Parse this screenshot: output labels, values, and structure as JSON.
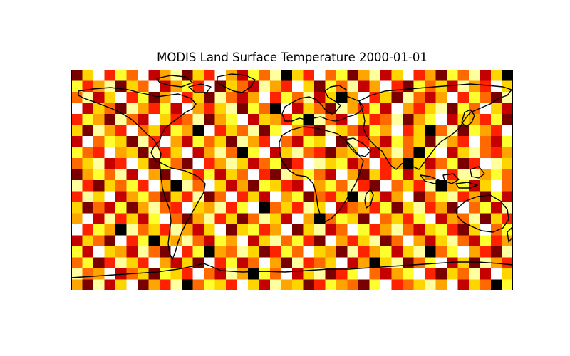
{
  "chart_data": {
    "type": "heatmap",
    "title": "MODIS Land Surface Temperature 2000-01-01",
    "xlabel": "",
    "ylabel": "",
    "colormap": "hot",
    "colors": [
      "#000000",
      "#7a0000",
      "#c40000",
      "#ff2200",
      "#ff6a00",
      "#ffa500",
      "#ffd500",
      "#ffff30",
      "#ffffa0",
      "#ffffff"
    ],
    "grid": false,
    "legend": "none",
    "rows": 20,
    "cols": 40,
    "values": [
      [
        0.15,
        0.6,
        0.9,
        0.3,
        0.7,
        0.4,
        0.95,
        0.2,
        0.55,
        0.8,
        0.1,
        0.65,
        0.35,
        0.9,
        0.5,
        0.25,
        0.75,
        0.45,
        0.85,
        0.05,
        0.6,
        0.3,
        0.95,
        0.4,
        0.7,
        0.15,
        0.5,
        0.8,
        0.2,
        0.65,
        0.9,
        0.35,
        0.55,
        0.1,
        0.75,
        0.45,
        0.85,
        0.25,
        0.6,
        0.05
      ],
      [
        0.7,
        0.3,
        0.5,
        0.85,
        0.15,
        0.6,
        0.4,
        0.95,
        0.25,
        0.55,
        0.75,
        0.35,
        0.9,
        0.1,
        0.65,
        0.45,
        0.2,
        0.8,
        0.5,
        0.3,
        0.95,
        0.6,
        0.15,
        0.7,
        0.4,
        0.85,
        0.25,
        0.55,
        0.9,
        0.35,
        0.1,
        0.75,
        0.45,
        0.65,
        0.2,
        0.8,
        0.5,
        0.3,
        0.95,
        0.6
      ],
      [
        0.4,
        0.85,
        0.2,
        0.6,
        0.95,
        0.3,
        0.7,
        0.1,
        0.5,
        0.9,
        0.35,
        0.65,
        0.15,
        0.8,
        0.45,
        0.25,
        0.55,
        0.95,
        0.3,
        0.7,
        0.4,
        0.85,
        0.2,
        0.6,
        0.05,
        0.5,
        0.9,
        0.35,
        0.65,
        0.15,
        0.8,
        0.45,
        0.25,
        0.55,
        0.95,
        0.3,
        0.7,
        0.4,
        0.1,
        0.85
      ],
      [
        0.9,
        0.25,
        0.65,
        0.45,
        0.1,
        0.8,
        0.55,
        0.35,
        0.75,
        0.2,
        0.95,
        0.5,
        0.3,
        0.6,
        0.85,
        0.15,
        0.7,
        0.4,
        0.05,
        0.9,
        0.25,
        0.65,
        0.45,
        0.1,
        0.8,
        0.55,
        0.35,
        0.75,
        0.2,
        0.95,
        0.5,
        0.3,
        0.6,
        0.85,
        0.15,
        0.7,
        0.4,
        0.9,
        0.65,
        0.2
      ],
      [
        0.35,
        0.7,
        0.5,
        0.15,
        0.85,
        0.4,
        0.25,
        0.95,
        0.6,
        0.3,
        0.45,
        0.8,
        0.1,
        0.55,
        0.75,
        0.9,
        0.2,
        0.65,
        0.5,
        0.35,
        0.7,
        0.05,
        0.85,
        0.4,
        0.25,
        0.95,
        0.6,
        0.3,
        0.45,
        0.8,
        0.1,
        0.55,
        0.75,
        0.9,
        0.2,
        0.65,
        0.5,
        0.35,
        0.7,
        0.15
      ],
      [
        0.6,
        0.1,
        0.8,
        0.55,
        0.3,
        0.95,
        0.45,
        0.65,
        0.2,
        0.75,
        0.5,
        0.05,
        0.9,
        0.35,
        0.6,
        0.4,
        0.85,
        0.15,
        0.7,
        0.95,
        0.55,
        0.3,
        0.1,
        0.8,
        0.65,
        0.45,
        0.2,
        0.75,
        0.5,
        0.9,
        0.35,
        0.6,
        0.05,
        0.4,
        0.85,
        0.15,
        0.7,
        0.55,
        0.3,
        0.95
      ],
      [
        0.2,
        0.9,
        0.45,
        0.7,
        0.6,
        0.15,
        0.85,
        0.35,
        0.95,
        0.5,
        0.25,
        0.75,
        0.4,
        0.65,
        0.1,
        0.8,
        0.55,
        0.3,
        0.9,
        0.45,
        0.2,
        0.7,
        0.6,
        0.95,
        0.15,
        0.85,
        0.35,
        0.5,
        0.25,
        0.75,
        0.4,
        0.65,
        0.1,
        0.8,
        0.55,
        0.3,
        0.9,
        0.45,
        0.2,
        0.7
      ],
      [
        0.75,
        0.4,
        0.3,
        0.95,
        0.5,
        0.65,
        0.1,
        0.8,
        0.35,
        0.6,
        0.9,
        0.2,
        0.55,
        0.85,
        0.45,
        0.05,
        0.7,
        0.95,
        0.25,
        0.6,
        0.8,
        0.4,
        0.3,
        0.15,
        0.5,
        0.65,
        0.9,
        0.2,
        0.55,
        0.85,
        0.45,
        0.05,
        0.7,
        0.95,
        0.25,
        0.6,
        0.8,
        0.4,
        0.3,
        0.5
      ],
      [
        0.45,
        0.65,
        0.85,
        0.2,
        0.35,
        0.9,
        0.6,
        0.15,
        0.75,
        0.4,
        0.1,
        0.95,
        0.3,
        0.5,
        0.8,
        0.65,
        0.25,
        0.45,
        0.7,
        0.1,
        0.35,
        0.9,
        0.85,
        0.6,
        0.75,
        0.2,
        0.4,
        0.95,
        0.3,
        0.5,
        0.05,
        0.65,
        0.25,
        0.45,
        0.7,
        0.1,
        0.35,
        0.9,
        0.85,
        0.6
      ],
      [
        0.1,
        0.55,
        0.7,
        0.4,
        0.8,
        0.25,
        0.95,
        0.5,
        0.15,
        0.9,
        0.65,
        0.35,
        0.75,
        0.2,
        0.6,
        0.45,
        0.95,
        0.3,
        0.15,
        0.85,
        0.55,
        0.7,
        0.4,
        0.25,
        0.9,
        0.5,
        0.1,
        0.65,
        0.35,
        0.75,
        0.2,
        0.6,
        0.45,
        0.95,
        0.3,
        0.8,
        0.85,
        0.55,
        0.7,
        0.4
      ],
      [
        0.85,
        0.3,
        0.15,
        0.6,
        0.45,
        0.7,
        0.35,
        0.9,
        0.55,
        0.05,
        0.8,
        0.4,
        0.95,
        0.65,
        0.25,
        0.5,
        0.1,
        0.75,
        0.6,
        0.35,
        0.2,
        0.95,
        0.55,
        0.7,
        0.4,
        0.85,
        0.3,
        0.15,
        0.9,
        0.45,
        0.65,
        0.35,
        0.8,
        0.05,
        0.5,
        0.75,
        0.25,
        0.6,
        0.95,
        0.4
      ],
      [
        0.3,
        0.8,
        0.6,
        0.95,
        0.2,
        0.5,
        0.75,
        0.4,
        0.1,
        0.65,
        0.35,
        0.85,
        0.15,
        0.45,
        0.9,
        0.3,
        0.6,
        0.2,
        0.95,
        0.55,
        0.75,
        0.1,
        0.45,
        0.35,
        0.65,
        0.05,
        0.8,
        0.6,
        0.25,
        0.5,
        0.9,
        0.15,
        0.4,
        0.7,
        0.85,
        0.35,
        0.55,
        0.1,
        0.75,
        0.25
      ],
      [
        0.65,
        0.15,
        0.4,
        0.25,
        0.75,
        0.1,
        0.55,
        0.85,
        0.45,
        0.3,
        0.95,
        0.6,
        0.5,
        0.8,
        0.35,
        0.7,
        0.9,
        0.05,
        0.4,
        0.65,
        0.3,
        0.85,
        0.6,
        0.95,
        0.2,
        0.45,
        0.55,
        0.35,
        0.75,
        0.1,
        0.6,
        0.85,
        0.3,
        0.5,
        0.15,
        0.95,
        0.4,
        0.7,
        0.2,
        0.8
      ],
      [
        0.5,
        0.95,
        0.25,
        0.8,
        0.35,
        0.6,
        0.2,
        0.7,
        0.9,
        0.45,
        0.15,
        0.55,
        0.85,
        0.3,
        0.65,
        0.1,
        0.4,
        0.8,
        0.6,
        0.25,
        0.9,
        0.5,
        0.05,
        0.4,
        0.75,
        0.65,
        0.15,
        0.95,
        0.45,
        0.6,
        0.3,
        0.7,
        0.9,
        0.2,
        0.55,
        0.4,
        0.85,
        0.15,
        0.65,
        0.35
      ],
      [
        0.95,
        0.35,
        0.75,
        0.5,
        0.05,
        0.85,
        0.4,
        0.6,
        0.3,
        0.8,
        0.55,
        0.2,
        0.65,
        0.95,
        0.1,
        0.6,
        0.75,
        0.35,
        0.5,
        0.9,
        0.15,
        0.6,
        0.8,
        0.25,
        0.45,
        0.95,
        0.7,
        0.3,
        0.55,
        0.85,
        0.4,
        0.2,
        0.65,
        0.75,
        0.35,
        0.1,
        0.6,
        0.9,
        0.45,
        0.7
      ],
      [
        0.25,
        0.6,
        0.45,
        0.15,
        0.9,
        0.35,
        0.7,
        0.05,
        0.65,
        0.5,
        0.85,
        0.4,
        0.25,
        0.75,
        0.55,
        0.95,
        0.2,
        0.6,
        0.85,
        0.4,
        0.7,
        0.35,
        0.15,
        0.9,
        0.55,
        0.3,
        0.65,
        0.8,
        0.1,
        0.4,
        0.95,
        0.5,
        0.25,
        0.6,
        0.85,
        0.45,
        0.2,
        0.75,
        0.35,
        0.55
      ],
      [
        0.7,
        0.2,
        0.95,
        0.65,
        0.55,
        0.25,
        0.85,
        0.45,
        0.15,
        0.95,
        0.3,
        0.7,
        0.05,
        0.5,
        0.4,
        0.8,
        0.6,
        0.15,
        0.3,
        0.7,
        0.45,
        0.95,
        0.65,
        0.5,
        0.1,
        0.8,
        0.35,
        0.55,
        0.75,
        0.25,
        0.6,
        0.85,
        0.05,
        0.45,
        0.7,
        0.9,
        0.55,
        0.3,
        0.15,
        0.8
      ],
      [
        0.4,
        0.75,
        0.1,
        0.35,
        0.8,
        0.6,
        0.3,
        0.9,
        0.5,
        0.2,
        0.65,
        0.15,
        0.9,
        0.35,
        0.75,
        0.25,
        0.45,
        0.95,
        0.55,
        0.1,
        0.8,
        0.3,
        0.4,
        0.65,
        0.95,
        0.2,
        0.5,
        0.05,
        0.6,
        0.85,
        0.15,
        0.4,
        0.7,
        0.95,
        0.25,
        0.6,
        0.1,
        0.85,
        0.5,
        0.3
      ],
      [
        0.85,
        0.45,
        0.55,
        0.9,
        0.25,
        0.4,
        0.65,
        0.1,
        0.75,
        0.6,
        0.35,
        0.95,
        0.45,
        0.2,
        0.85,
        0.55,
        0.05,
        0.7,
        0.4,
        0.95,
        0.25,
        0.6,
        0.85,
        0.15,
        0.35,
        0.7,
        0.9,
        0.45,
        0.2,
        0.55,
        0.75,
        0.95,
        0.35,
        0.1,
        0.6,
        0.45,
        0.8,
        0.25,
        0.95,
        0.6
      ],
      [
        0.55,
        0.1,
        0.8,
        0.2,
        0.6,
        0.95,
        0.15,
        0.5,
        0.35,
        0.85,
        0.05,
        0.45,
        0.7,
        0.6,
        0.3,
        0.9,
        0.65,
        0.25,
        0.8,
        0.5,
        0.6,
        0.15,
        0.35,
        0.75,
        0.55,
        0.4,
        0.1,
        0.7,
        0.95,
        0.3,
        0.45,
        0.6,
        0.8,
        0.55,
        0.9,
        0.2,
        0.65,
        0.4,
        0.05,
        0.75
      ]
    ]
  }
}
